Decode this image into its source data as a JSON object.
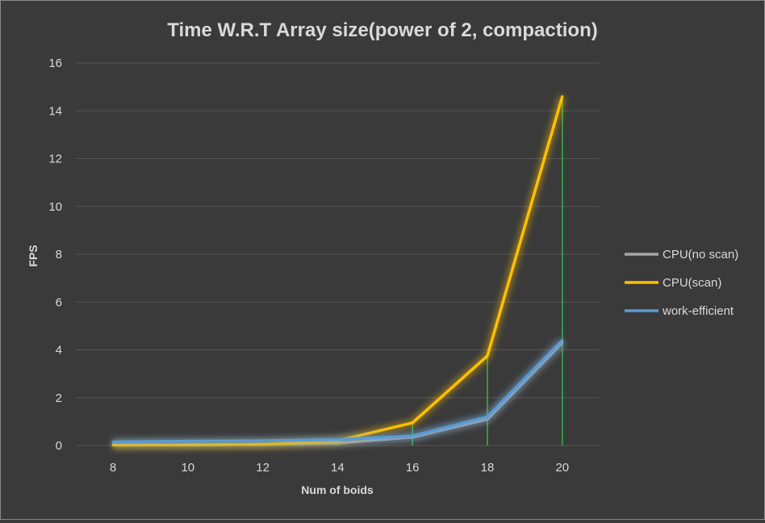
{
  "chart_data": {
    "type": "line",
    "title": "Time W.R.T Array size(power of 2, compaction)",
    "xlabel": "Num of boids",
    "ylabel": "FPS",
    "x": [
      8,
      10,
      12,
      14,
      16,
      18,
      20
    ],
    "ylim": [
      0,
      16
    ],
    "yticks": [
      0,
      2,
      4,
      6,
      8,
      10,
      12,
      14,
      16
    ],
    "grid": true,
    "legend_position": "right",
    "series": [
      {
        "name": "CPU(no scan)",
        "color": "#a5a5a5",
        "values": [
          0.02,
          0.03,
          0.05,
          0.1,
          0.35,
          1.1,
          4.3
        ]
      },
      {
        "name": "CPU(scan)",
        "color": "#ffc000",
        "values": [
          0.02,
          0.03,
          0.05,
          0.2,
          0.95,
          3.75,
          14.6
        ]
      },
      {
        "name": "work-efficient",
        "color": "#5b9bd5",
        "values": [
          0.15,
          0.18,
          0.2,
          0.25,
          0.4,
          1.2,
          4.4
        ]
      }
    ],
    "drop_lines_color": "#3bb34a"
  }
}
